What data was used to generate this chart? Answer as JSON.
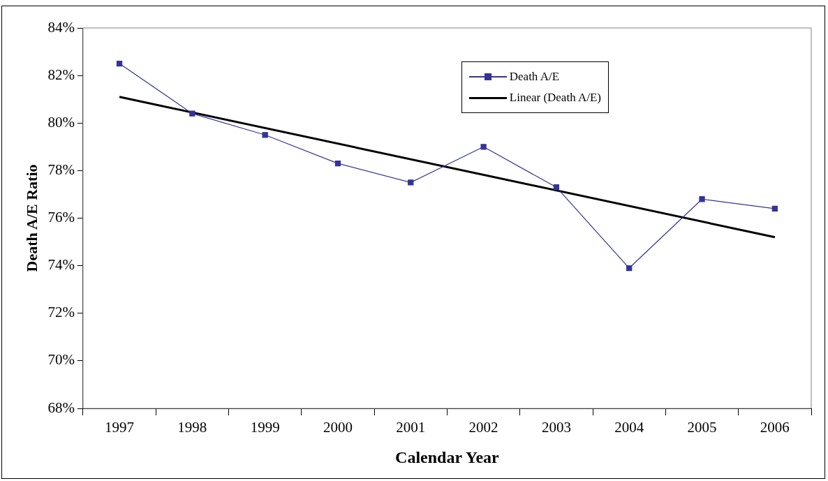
{
  "chart_data": {
    "type": "line",
    "xlabel": "Calendar Year",
    "ylabel": "Death A/E Ratio",
    "categories": [
      "1997",
      "1998",
      "1999",
      "2000",
      "2001",
      "2002",
      "2003",
      "2004",
      "2005",
      "2006"
    ],
    "series": [
      {
        "name": "Death A/E",
        "color": "#333399",
        "marker": "square",
        "values": [
          82.5,
          80.4,
          79.5,
          78.3,
          77.5,
          79.0,
          77.3,
          73.9,
          76.8,
          76.4
        ]
      },
      {
        "name": "Linear (Death A/E)",
        "color": "#000000",
        "marker": "none",
        "values": [
          81.1,
          null,
          null,
          null,
          null,
          null,
          null,
          null,
          null,
          75.2
        ]
      }
    ],
    "ylim": [
      68,
      84
    ],
    "yticks": [
      {
        "value": 68,
        "label": "68%"
      },
      {
        "value": 70,
        "label": "70%"
      },
      {
        "value": 72,
        "label": "72%"
      },
      {
        "value": 74,
        "label": "74%"
      },
      {
        "value": 76,
        "label": "76%"
      },
      {
        "value": 78,
        "label": "78%"
      },
      {
        "value": 80,
        "label": "80%"
      },
      {
        "value": 82,
        "label": "82%"
      },
      {
        "value": 84,
        "label": "84%"
      }
    ],
    "grid": false,
    "legend": "top right"
  }
}
